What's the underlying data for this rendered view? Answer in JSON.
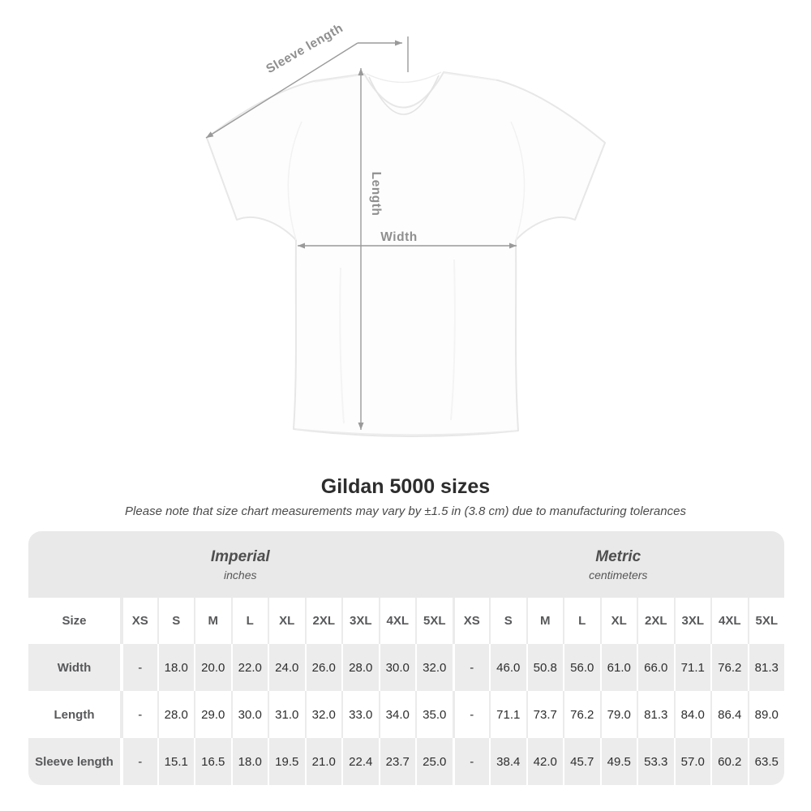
{
  "diagram": {
    "sleeve_label": "Sleeve length",
    "length_label": "Length",
    "width_label": "Width",
    "arrow_color": "#9a9a9a"
  },
  "heading": {
    "title": "Gildan 5000 sizes",
    "note": "Please note that size chart measurements may vary by ±1.5 in (3.8 cm) due to manufacturing tolerances"
  },
  "chart_data": {
    "type": "table",
    "title": "Gildan 5000 sizes",
    "corner_header": "Size",
    "groups": [
      {
        "label": "Imperial",
        "unit": "inches"
      },
      {
        "label": "Metric",
        "unit": "centimeters"
      }
    ],
    "size_columns": [
      "XS",
      "S",
      "M",
      "L",
      "XL",
      "2XL",
      "3XL",
      "4XL",
      "5XL"
    ],
    "rows": [
      {
        "label": "Width",
        "imperial": [
          "-",
          "18.0",
          "20.0",
          "22.0",
          "24.0",
          "26.0",
          "28.0",
          "30.0",
          "32.0"
        ],
        "metric": [
          "-",
          "46.0",
          "50.8",
          "56.0",
          "61.0",
          "66.0",
          "71.1",
          "76.2",
          "81.3"
        ]
      },
      {
        "label": "Length",
        "imperial": [
          "-",
          "28.0",
          "29.0",
          "30.0",
          "31.0",
          "32.0",
          "33.0",
          "34.0",
          "35.0"
        ],
        "metric": [
          "-",
          "71.1",
          "73.7",
          "76.2",
          "79.0",
          "81.3",
          "84.0",
          "86.4",
          "89.0"
        ]
      },
      {
        "label": "Sleeve length",
        "imperial": [
          "-",
          "15.1",
          "16.5",
          "18.0",
          "19.5",
          "21.0",
          "22.4",
          "23.7",
          "25.0"
        ],
        "metric": [
          "-",
          "38.4",
          "42.0",
          "45.7",
          "49.5",
          "53.3",
          "57.0",
          "60.2",
          "63.5"
        ]
      }
    ]
  },
  "colors": {
    "group_header_bg": "#e9e9e9",
    "gray_row_bg": "#ececec",
    "header_text": "#58595b",
    "data_text": "#2e2e2e",
    "arrow_gray": "#9a9a9a"
  }
}
